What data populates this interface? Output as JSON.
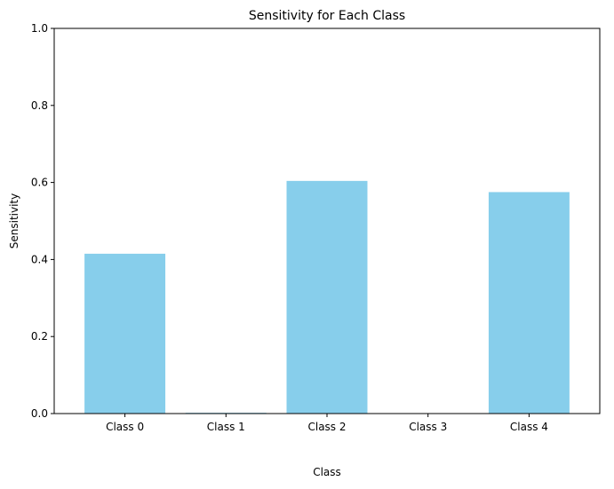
{
  "chart_data": {
    "type": "bar",
    "title": "Sensitivity for Each Class",
    "xlabel": "Class",
    "ylabel": "Sensitivity",
    "categories": [
      "Class 0",
      "Class 1",
      "Class 2",
      "Class 3",
      "Class 4"
    ],
    "values": [
      0.415,
      0.002,
      0.604,
      0.0,
      0.575
    ],
    "ylim": [
      0,
      1
    ],
    "yticks": [
      0.0,
      0.2,
      0.4,
      0.6,
      0.8,
      1.0
    ],
    "ytick_labels": [
      "0.0",
      "0.2",
      "0.4",
      "0.6",
      "0.8",
      "1.0"
    ],
    "bar_color": "#87ceeb",
    "grid": false,
    "legend": "none"
  }
}
